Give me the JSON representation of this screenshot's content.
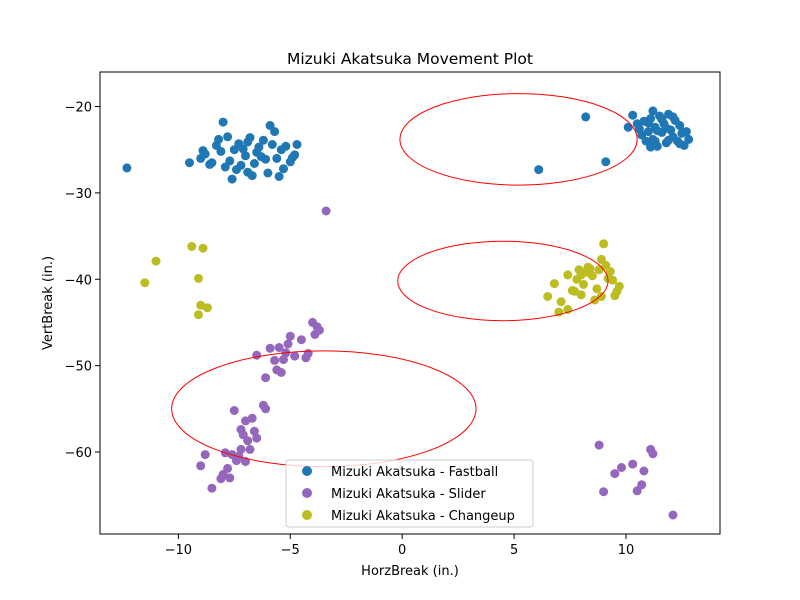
{
  "chart_data": {
    "type": "scatter",
    "title": "Mizuki Akatsuka Movement Plot",
    "xlabel": "HorzBreak (in.)",
    "ylabel": "VertBreak (in.)",
    "xlim": [
      -13.5,
      14.2
    ],
    "ylim": [
      -69.5,
      -16
    ],
    "x_ticks": [
      -10,
      -5,
      0,
      5,
      10
    ],
    "y_ticks": [
      -20,
      -30,
      -40,
      -50,
      -60
    ],
    "legend_position": "bottom-center",
    "grid": false,
    "series": [
      {
        "name": "Mizuki Akatsuka - Fastball",
        "color": "#1f77b4",
        "points": [
          [
            -12.3,
            -27.1
          ],
          [
            -9.5,
            -26.5
          ],
          [
            -9.0,
            -26.0
          ],
          [
            -8.8,
            -25.5
          ],
          [
            -8.5,
            -26.5
          ],
          [
            -8.3,
            -24.5
          ],
          [
            -8.2,
            -23.8
          ],
          [
            -8.0,
            -21.8
          ],
          [
            -8.1,
            -25.2
          ],
          [
            -7.9,
            -27.0
          ],
          [
            -7.7,
            -26.3
          ],
          [
            -7.6,
            -28.4
          ],
          [
            -7.5,
            -25.0
          ],
          [
            -7.3,
            -24.3
          ],
          [
            -7.2,
            -26.8
          ],
          [
            -7.0,
            -25.7
          ],
          [
            -6.9,
            -27.6
          ],
          [
            -6.8,
            -23.6
          ],
          [
            -6.7,
            -28.0
          ],
          [
            -6.5,
            -25.3
          ],
          [
            -6.4,
            -24.7
          ],
          [
            -6.2,
            -23.9
          ],
          [
            -6.1,
            -26.1
          ],
          [
            -6.0,
            -27.7
          ],
          [
            -5.9,
            -22.2
          ],
          [
            -5.8,
            -24.4
          ],
          [
            -5.7,
            -22.9
          ],
          [
            -5.6,
            -26.0
          ],
          [
            -5.5,
            -28.1
          ],
          [
            -5.4,
            -25.0
          ],
          [
            -5.3,
            -27.2
          ],
          [
            -5.0,
            -26.4
          ],
          [
            -4.9,
            -25.9
          ],
          [
            -4.7,
            -24.4
          ],
          [
            -7.1,
            -24.9
          ],
          [
            -6.6,
            -26.6
          ],
          [
            -8.6,
            -26.7
          ],
          [
            -7.4,
            -27.3
          ],
          [
            -6.3,
            -25.8
          ],
          [
            -5.2,
            -24.6
          ],
          [
            -4.8,
            -25.6
          ],
          [
            -8.9,
            -25.1
          ],
          [
            -7.8,
            -23.5
          ],
          [
            -6.9,
            -24.1
          ],
          [
            8.2,
            -21.2
          ],
          [
            6.1,
            -27.3
          ],
          [
            9.1,
            -26.4
          ],
          [
            10.1,
            -22.4
          ],
          [
            10.3,
            -21.0
          ],
          [
            10.5,
            -22.0
          ],
          [
            10.7,
            -23.3
          ],
          [
            10.8,
            -21.7
          ],
          [
            10.9,
            -24.0
          ],
          [
            11.0,
            -22.9
          ],
          [
            11.1,
            -21.4
          ],
          [
            11.2,
            -20.5
          ],
          [
            11.2,
            -23.8
          ],
          [
            11.3,
            -22.4
          ],
          [
            11.4,
            -24.6
          ],
          [
            11.5,
            -21.1
          ],
          [
            11.6,
            -23.0
          ],
          [
            11.7,
            -22.0
          ],
          [
            11.8,
            -24.2
          ],
          [
            11.9,
            -20.9
          ],
          [
            12.0,
            -22.7
          ],
          [
            12.1,
            -23.5
          ],
          [
            12.2,
            -21.6
          ],
          [
            12.3,
            -24.0
          ],
          [
            12.4,
            -22.2
          ],
          [
            12.5,
            -23.1
          ],
          [
            12.6,
            -24.5
          ],
          [
            12.7,
            -22.9
          ],
          [
            12.8,
            -23.8
          ],
          [
            11.0,
            -21.9
          ],
          [
            11.3,
            -24.0
          ],
          [
            11.6,
            -21.5
          ],
          [
            11.9,
            -23.9
          ],
          [
            12.1,
            -21.2
          ],
          [
            11.4,
            -22.8
          ],
          [
            10.6,
            -22.6
          ],
          [
            11.8,
            -22.5
          ],
          [
            12.4,
            -24.3
          ],
          [
            11.1,
            -24.7
          ]
        ]
      },
      {
        "name": "Mizuki Akatsuka - Slider",
        "color": "#9467bd",
        "points": [
          [
            -3.4,
            -32.1
          ],
          [
            -4.0,
            -45.0
          ],
          [
            -3.8,
            -45.5
          ],
          [
            -3.7,
            -45.9
          ],
          [
            -3.9,
            -46.4
          ],
          [
            -4.2,
            -48.6
          ],
          [
            -4.3,
            -49.1
          ],
          [
            -4.5,
            -47.0
          ],
          [
            -4.8,
            -48.9
          ],
          [
            -5.0,
            -46.6
          ],
          [
            -5.1,
            -47.5
          ],
          [
            -5.2,
            -48.5
          ],
          [
            -5.3,
            -49.3
          ],
          [
            -5.4,
            -50.8
          ],
          [
            -5.5,
            -47.9
          ],
          [
            -5.6,
            -50.5
          ],
          [
            -5.7,
            -49.4
          ],
          [
            -5.9,
            -48.0
          ],
          [
            -6.1,
            -51.4
          ],
          [
            -6.5,
            -48.8
          ],
          [
            -7.2,
            -59.7
          ],
          [
            -7.3,
            -60.5
          ],
          [
            -7.4,
            -61.0
          ],
          [
            -7.5,
            -55.2
          ],
          [
            -7.6,
            -60.3
          ],
          [
            -7.7,
            -63.0
          ],
          [
            -7.8,
            -61.9
          ],
          [
            -7.9,
            -60.1
          ],
          [
            -8.0,
            -62.6
          ],
          [
            -8.1,
            -63.1
          ],
          [
            -8.5,
            -64.2
          ],
          [
            -8.8,
            -60.3
          ],
          [
            -9.0,
            -61.6
          ],
          [
            -7.0,
            -56.4
          ],
          [
            -6.9,
            -58.7
          ],
          [
            -6.8,
            -59.7
          ],
          [
            -6.7,
            -56.1
          ],
          [
            -6.6,
            -57.6
          ],
          [
            -6.5,
            -58.4
          ],
          [
            -7.1,
            -58.0
          ],
          [
            -7.2,
            -57.4
          ],
          [
            -7.0,
            -61.1
          ],
          [
            -6.2,
            -54.6
          ],
          [
            -6.1,
            -55.0
          ],
          [
            8.8,
            -59.2
          ],
          [
            9.0,
            -64.6
          ],
          [
            9.5,
            -62.5
          ],
          [
            9.8,
            -61.8
          ],
          [
            10.3,
            -61.4
          ],
          [
            10.5,
            -64.5
          ],
          [
            10.7,
            -63.8
          ],
          [
            10.8,
            -62.2
          ],
          [
            11.1,
            -59.7
          ],
          [
            11.2,
            -60.2
          ],
          [
            12.1,
            -67.3
          ]
        ]
      },
      {
        "name": "Mizuki Akatsuka - Changeup",
        "color": "#bcbd22",
        "points": [
          [
            -11.5,
            -40.4
          ],
          [
            -11.0,
            -37.9
          ],
          [
            -9.4,
            -36.2
          ],
          [
            -8.9,
            -36.4
          ],
          [
            -9.1,
            -39.9
          ],
          [
            -9.0,
            -43.0
          ],
          [
            -8.7,
            -43.3
          ],
          [
            -9.1,
            -44.1
          ],
          [
            6.5,
            -42.0
          ],
          [
            6.8,
            -40.5
          ],
          [
            7.0,
            -43.8
          ],
          [
            7.1,
            -42.6
          ],
          [
            7.4,
            -43.5
          ],
          [
            7.4,
            -39.5
          ],
          [
            7.6,
            -41.3
          ],
          [
            7.8,
            -40.0
          ],
          [
            7.9,
            -38.9
          ],
          [
            8.0,
            -41.8
          ],
          [
            8.1,
            -40.6
          ],
          [
            8.2,
            -39.2
          ],
          [
            8.3,
            -38.6
          ],
          [
            8.5,
            -39.6
          ],
          [
            8.6,
            -42.4
          ],
          [
            8.7,
            -41.1
          ],
          [
            8.8,
            -38.9
          ],
          [
            8.9,
            -37.7
          ],
          [
            9.0,
            -35.9
          ],
          [
            9.1,
            -38.4
          ],
          [
            9.2,
            -39.9
          ],
          [
            9.3,
            -39.1
          ],
          [
            9.5,
            -41.9
          ],
          [
            9.6,
            -41.4
          ],
          [
            9.7,
            -40.8
          ],
          [
            8.4,
            -38.8
          ],
          [
            7.7,
            -41.4
          ],
          [
            8.9,
            -42.0
          ],
          [
            9.4,
            -40.1
          ],
          [
            8.0,
            -39.5
          ]
        ]
      }
    ],
    "ellipses": [
      {
        "cx": 5.2,
        "cy": -23.8,
        "rx": 5.3,
        "ry": 5.3,
        "color": "#ff0000"
      },
      {
        "cx": 4.5,
        "cy": -40.2,
        "rx": 4.7,
        "ry": 4.6,
        "color": "#ff0000"
      },
      {
        "cx": -3.5,
        "cy": -55.0,
        "rx": 6.8,
        "ry": 6.7,
        "color": "#ff0000"
      }
    ]
  }
}
